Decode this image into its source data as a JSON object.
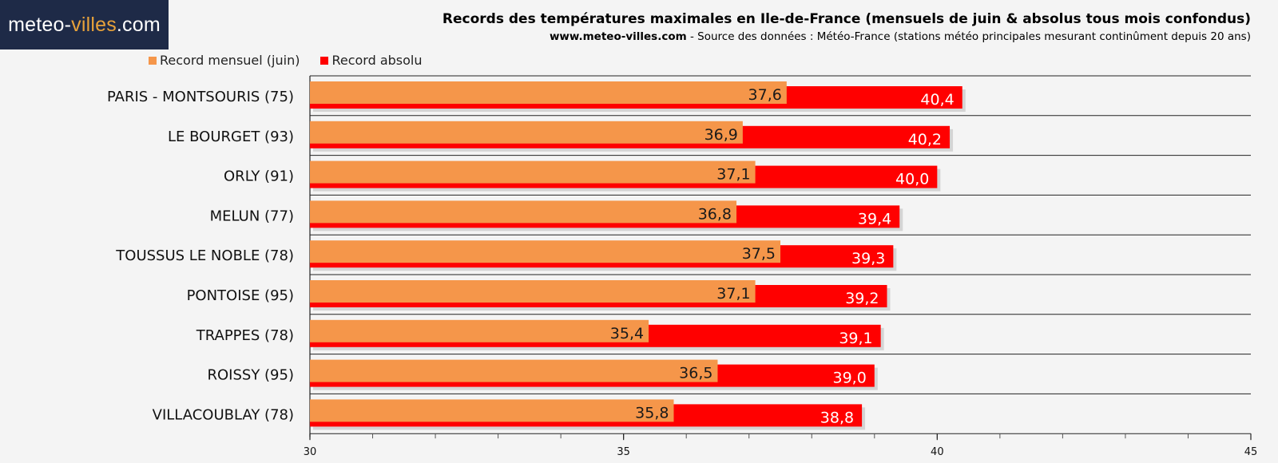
{
  "brand": {
    "logo_prefix": "meteo-",
    "logo_accent": "villes",
    "logo_suffix": ".com"
  },
  "header": {
    "title": "Records des températures maximales en Ile-de-France (mensuels de juin & absolus tous mois confondus)",
    "subtitle_site": "www.meteo-villes.com",
    "subtitle_rest": " - Source des données : Météo-France (stations météo principales mesurant continûment depuis 20 ans)"
  },
  "colors": {
    "monthly": "#f5964a",
    "absolute": "#ff0000",
    "logo_bg": "#1e2a47",
    "logo_accent": "#e8a23a"
  },
  "chart_data": {
    "type": "bar",
    "orientation": "horizontal",
    "title": "Records des températures maximales en Ile-de-France (mensuels de juin & absolus tous mois confondus)",
    "categories": [
      "PARIS - MONTSOURIS (75)",
      "LE BOURGET (93)",
      "ORLY (91)",
      "MELUN (77)",
      "TOUSSUS LE NOBLE (78)",
      "PONTOISE (95)",
      "TRAPPES (78)",
      "ROISSY (95)",
      "VILLACOUBLAY (78)"
    ],
    "series": [
      {
        "name": "Record mensuel (juin)",
        "values": [
          37.6,
          36.9,
          37.1,
          36.8,
          37.5,
          37.1,
          35.4,
          36.5,
          35.8
        ],
        "labels": [
          "37,6",
          "36,9",
          "37,1",
          "36,8",
          "37,5",
          "37,1",
          "35,4",
          "36,5",
          "35,8"
        ]
      },
      {
        "name": "Record absolu",
        "values": [
          40.4,
          40.2,
          40.0,
          39.4,
          39.3,
          39.2,
          39.1,
          39.0,
          38.8
        ],
        "labels": [
          "40,4",
          "40,2",
          "40,0",
          "39,4",
          "39,3",
          "39,2",
          "39,1",
          "39,0",
          "38,8"
        ]
      }
    ],
    "xlim": [
      30,
      45
    ],
    "xticks": [
      30,
      35,
      40,
      45
    ],
    "xtick_labels": [
      "30",
      "35",
      "40",
      "45"
    ],
    "minor_tick_step": 1,
    "grid": true,
    "legend": "top-left"
  }
}
